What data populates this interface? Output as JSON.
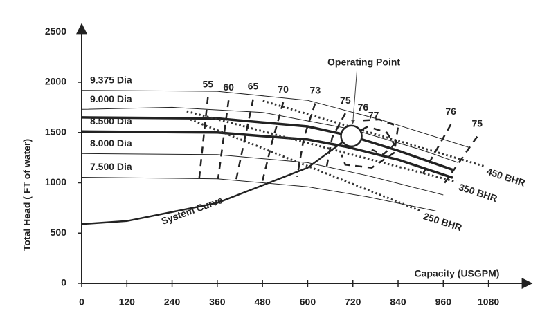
{
  "chart_data": {
    "type": "line",
    "x_label": "Capacity (USGPM)",
    "y_label": "Total Head ( FT of water)",
    "xlim": [
      0,
      1180
    ],
    "ylim": [
      0,
      2550
    ],
    "xticks": [
      0,
      120,
      240,
      360,
      480,
      600,
      720,
      840,
      960,
      1080
    ],
    "yticks": [
      0,
      500,
      1000,
      1500,
      2000,
      2500
    ],
    "series": [
      {
        "name": "9.375 Dia",
        "x": [
          0,
          360,
          600,
          800,
          1030
        ],
        "values": [
          1920,
          1910,
          1820,
          1620,
          1350
        ]
      },
      {
        "name": "9.000 Dia",
        "x": [
          0,
          240,
          480,
          720,
          900,
          1000
        ],
        "values": [
          1730,
          1750,
          1700,
          1530,
          1330,
          1200
        ]
      },
      {
        "x": [
          0,
          360,
          600,
          716,
          840,
          985
        ],
        "values": [
          1650,
          1640,
          1560,
          1465,
          1320,
          1130
        ],
        "thick": true
      },
      {
        "name": "8.500 Dia",
        "x": [
          0,
          360,
          600,
          700,
          840,
          985
        ],
        "values": [
          1510,
          1500,
          1430,
          1360,
          1230,
          1050
        ],
        "thick": true
      },
      {
        "name": "8.000 Dia",
        "x": [
          0,
          360,
          600,
          760,
          960
        ],
        "values": [
          1290,
          1280,
          1200,
          1070,
          880
        ]
      },
      {
        "name": "7.500 Dia",
        "x": [
          0,
          360,
          600,
          760,
          940
        ],
        "values": [
          1055,
          1040,
          960,
          860,
          720
        ]
      }
    ],
    "efficiency_lines": [
      {
        "label": 55,
        "x": [
          335,
          312
        ],
        "values": [
          1850,
          1040
        ]
      },
      {
        "label": 60,
        "x": [
          390,
          362
        ],
        "values": [
          1820,
          1040
        ]
      },
      {
        "label": 65,
        "x": [
          455,
          410
        ],
        "values": [
          1830,
          1030
        ]
      },
      {
        "label": 70,
        "x": [
          535,
          505,
          480
        ],
        "values": [
          1800,
          1400,
          1020
        ]
      },
      {
        "label": 73,
        "x": [
          620,
          590,
          572
        ],
        "values": [
          1790,
          1450,
          1060
        ]
      },
      {
        "label": 75,
        "x": [
          700,
          665,
          650
        ],
        "values": [
          1690,
          1450,
          1150
        ]
      },
      {
        "label": 76,
        "x": [
          747,
          790,
          840,
          830,
          770,
          700,
          690
        ],
        "values": [
          1620,
          1630,
          1560,
          1300,
          1150,
          1180,
          1280
        ]
      },
      {
        "label": 77,
        "x": [
          775,
          810,
          830,
          800,
          770
        ],
        "values": [
          1540,
          1500,
          1380,
          1280,
          1330
        ]
      },
      {
        "label": 76,
        "x": [
          980,
          900
        ],
        "values": [
          1580,
          1050
        ]
      },
      {
        "label": 75,
        "x": [
          1050,
          960
        ],
        "values": [
          1460,
          980
        ]
      }
    ],
    "power_lines": [
      {
        "name": "450 BHR",
        "x": [
          481,
          1068
        ],
        "values": [
          1815,
          1165
        ]
      },
      {
        "name": "350 BHR",
        "x": [
          279,
          994
        ],
        "values": [
          1710,
          1010
        ]
      },
      {
        "name": "250 BHR",
        "x": [
          288,
          900
        ],
        "values": [
          1630,
          720
        ]
      }
    ],
    "system_curve": {
      "name": "System Curve",
      "x": [
        0,
        120,
        360,
        600,
        720,
        760
      ],
      "values": [
        590,
        620,
        800,
        1150,
        1480,
        1560
      ]
    },
    "operating_point": {
      "label": "Operating Point",
      "x": 716,
      "y": 1465
    }
  }
}
